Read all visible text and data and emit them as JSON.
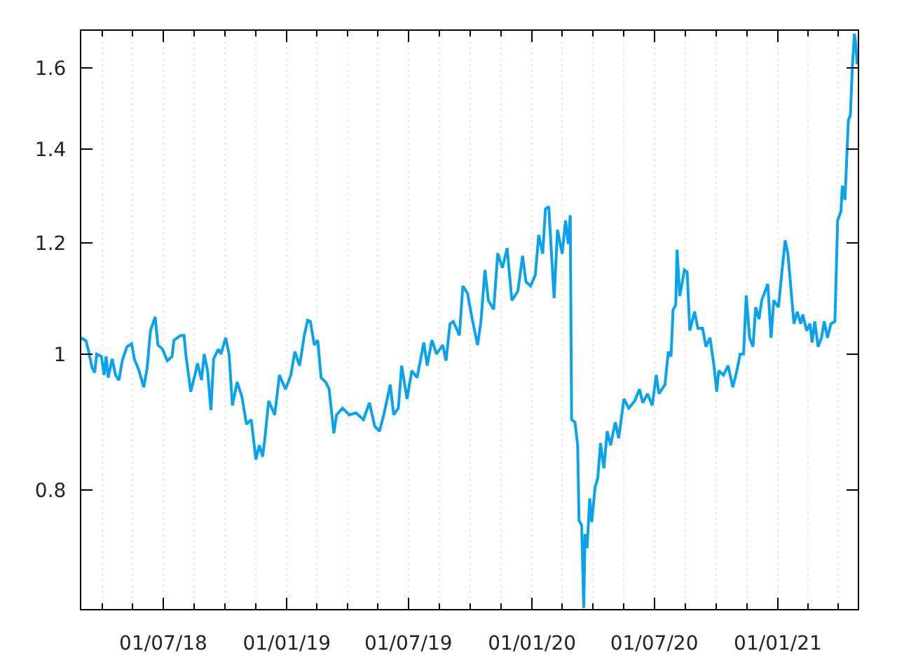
{
  "chart_data": {
    "type": "line",
    "x": [
      "2018-03-01",
      "2018-03-08",
      "2018-03-12",
      "2018-03-17",
      "2018-03-21",
      "2018-03-24",
      "2018-03-31",
      "2018-04-04",
      "2018-04-07",
      "2018-04-10",
      "2018-04-16",
      "2018-04-21",
      "2018-04-26",
      "2018-05-01",
      "2018-05-08",
      "2018-05-15",
      "2018-05-19",
      "2018-05-26",
      "2018-06-02",
      "2018-06-07",
      "2018-06-12",
      "2018-06-19",
      "2018-06-23",
      "2018-06-30",
      "2018-07-07",
      "2018-07-14",
      "2018-07-17",
      "2018-07-27",
      "2018-08-01",
      "2018-08-04",
      "2018-08-11",
      "2018-08-18",
      "2018-08-21",
      "2018-08-27",
      "2018-08-31",
      "2018-09-05",
      "2018-09-10",
      "2018-09-14",
      "2018-09-21",
      "2018-09-25",
      "2018-10-02",
      "2018-10-07",
      "2018-10-12",
      "2018-10-19",
      "2018-10-26",
      "2018-11-02",
      "2018-11-09",
      "2018-11-16",
      "2018-11-21",
      "2018-11-26",
      "2018-11-29",
      "2018-12-05",
      "2018-12-14",
      "2018-12-21",
      "2018-12-30",
      "2019-01-07",
      "2019-01-13",
      "2019-01-20",
      "2019-01-27",
      "2019-02-01",
      "2019-02-05",
      "2019-02-11",
      "2019-02-16",
      "2019-02-21",
      "2019-02-28",
      "2019-03-05",
      "2019-03-12",
      "2019-03-16",
      "2019-03-25",
      "2019-04-04",
      "2019-04-14",
      "2019-04-25",
      "2019-05-04",
      "2019-05-12",
      "2019-05-19",
      "2019-05-26",
      "2019-06-04",
      "2019-06-09",
      "2019-06-16",
      "2019-06-21",
      "2019-06-29",
      "2019-07-06",
      "2019-07-14",
      "2019-07-24",
      "2019-07-29",
      "2019-08-05",
      "2019-08-12",
      "2019-08-21",
      "2019-08-26",
      "2019-09-01",
      "2019-09-06",
      "2019-09-15",
      "2019-09-20",
      "2019-09-27",
      "2019-10-04",
      "2019-10-12",
      "2019-10-17",
      "2019-10-23",
      "2019-10-28",
      "2019-11-05",
      "2019-11-11",
      "2019-11-18",
      "2019-11-25",
      "2019-12-02",
      "2019-12-11",
      "2019-12-18",
      "2019-12-23",
      "2019-12-30",
      "2020-01-06",
      "2020-01-11",
      "2020-01-17",
      "2020-01-21",
      "2020-01-26",
      "2020-01-30",
      "2020-02-03",
      "2020-02-08",
      "2020-02-15",
      "2020-02-20",
      "2020-02-24",
      "2020-02-27",
      "2020-02-29",
      "2020-03-05",
      "2020-03-09",
      "2020-03-11",
      "2020-03-15",
      "2020-03-18",
      "2020-03-20",
      "2020-03-23",
      "2020-03-27",
      "2020-03-30",
      "2020-04-04",
      "2020-04-08",
      "2020-04-12",
      "2020-04-17",
      "2020-04-22",
      "2020-04-27",
      "2020-05-04",
      "2020-05-09",
      "2020-05-17",
      "2020-05-24",
      "2020-06-02",
      "2020-06-09",
      "2020-06-14",
      "2020-06-21",
      "2020-06-28",
      "2020-07-04",
      "2020-07-08",
      "2020-07-17",
      "2020-07-22",
      "2020-07-26",
      "2020-07-29",
      "2020-08-02",
      "2020-08-04",
      "2020-08-08",
      "2020-08-15",
      "2020-08-19",
      "2020-08-23",
      "2020-08-30",
      "2020-09-04",
      "2020-09-11",
      "2020-09-16",
      "2020-09-22",
      "2020-09-28",
      "2020-10-02",
      "2020-10-05",
      "2020-10-12",
      "2020-10-19",
      "2020-10-26",
      "2020-11-01",
      "2020-11-06",
      "2020-11-11",
      "2020-11-15",
      "2020-11-20",
      "2020-11-25",
      "2020-11-29",
      "2020-12-04",
      "2020-12-08",
      "2020-12-17",
      "2020-12-22",
      "2020-12-26",
      "2021-01-02",
      "2021-01-07",
      "2021-01-12",
      "2021-01-16",
      "2021-01-19",
      "2021-01-25",
      "2021-01-30",
      "2021-02-04",
      "2021-02-07",
      "2021-02-13",
      "2021-02-18",
      "2021-02-21",
      "2021-02-25",
      "2021-03-02",
      "2021-03-07",
      "2021-03-11",
      "2021-03-16",
      "2021-03-21",
      "2021-03-27",
      "2021-03-31",
      "2021-04-05",
      "2021-04-07",
      "2021-04-11",
      "2021-04-16",
      "2021-04-19",
      "2021-04-22",
      "2021-04-25",
      "2021-04-27",
      "2021-04-29"
    ],
    "series": [
      {
        "color": "#0aa2ec",
        "values": [
          1.027,
          1.022,
          1.004,
          0.978,
          0.97,
          1.0,
          0.996,
          0.966,
          0.996,
          0.962,
          0.992,
          0.966,
          0.958,
          0.989,
          1.012,
          1.017,
          0.992,
          0.973,
          0.947,
          0.977,
          1.039,
          1.063,
          1.015,
          1.008,
          0.989,
          0.996,
          1.023,
          1.031,
          1.031,
          0.996,
          0.94,
          0.97,
          0.985,
          0.958,
          1.0,
          0.973,
          0.912,
          0.992,
          1.008,
          1.0,
          1.027,
          1.0,
          0.919,
          0.955,
          0.933,
          0.891,
          0.898,
          0.841,
          0.861,
          0.845,
          0.868,
          0.926,
          0.905,
          0.966,
          0.944,
          0.966,
          1.004,
          0.981,
          1.031,
          1.057,
          1.055,
          1.015,
          1.023,
          0.962,
          0.955,
          0.944,
          0.878,
          0.905,
          0.915,
          0.905,
          0.908,
          0.898,
          0.923,
          0.888,
          0.881,
          0.908,
          0.951,
          0.905,
          0.915,
          0.981,
          0.929,
          0.973,
          0.962,
          1.019,
          0.981,
          1.023,
          1.0,
          1.015,
          0.989,
          1.051,
          1.055,
          1.031,
          1.118,
          1.105,
          1.059,
          1.015,
          1.055,
          1.148,
          1.092,
          1.076,
          1.18,
          1.152,
          1.19,
          1.092,
          1.109,
          1.175,
          1.126,
          1.118,
          1.139,
          1.216,
          1.179,
          1.269,
          1.274,
          1.179,
          1.096,
          1.226,
          1.179,
          1.245,
          1.198,
          1.256,
          0.898,
          0.894,
          0.861,
          0.761,
          0.755,
          0.659,
          0.744,
          0.727,
          0.789,
          0.759,
          0.804,
          0.816,
          0.864,
          0.829,
          0.881,
          0.861,
          0.894,
          0.871,
          0.929,
          0.915,
          0.926,
          0.944,
          0.923,
          0.937,
          0.919,
          0.966,
          0.937,
          0.951,
          1.004,
          0.996,
          1.075,
          1.084,
          1.187,
          1.1,
          1.148,
          1.144,
          1.039,
          1.072,
          1.043,
          1.043,
          1.012,
          1.027,
          0.981,
          0.94,
          0.973,
          0.966,
          0.981,
          0.947,
          0.973,
          1.0,
          1.0,
          1.101,
          1.027,
          1.012,
          1.08,
          1.059,
          1.092,
          1.122,
          1.027,
          1.092,
          1.08,
          1.144,
          1.205,
          1.179,
          1.135,
          1.051,
          1.072,
          1.051,
          1.067,
          1.039,
          1.051,
          1.019,
          1.055,
          1.012,
          1.027,
          1.055,
          1.027,
          1.051,
          1.055,
          1.245,
          1.264,
          1.318,
          1.288,
          1.468,
          1.48,
          1.604,
          1.692,
          1.666,
          1.609
        ]
      }
    ],
    "xlim": [
      "2018-03-01",
      "2021-04-30"
    ],
    "ylim": [
      0.658,
      1.7
    ],
    "xticks": [
      {
        "value": "2018-04-01",
        "label": null
      },
      {
        "value": "2018-05-16",
        "label": null
      },
      {
        "value": "2018-07-01",
        "label": "01/07/18"
      },
      {
        "value": "2018-08-16",
        "label": null
      },
      {
        "value": "2018-10-01",
        "label": null
      },
      {
        "value": "2018-11-16",
        "label": null
      },
      {
        "value": "2019-01-01",
        "label": "01/01/19"
      },
      {
        "value": "2019-02-15",
        "label": null
      },
      {
        "value": "2019-04-01",
        "label": null
      },
      {
        "value": "2019-05-16",
        "label": null
      },
      {
        "value": "2019-07-01",
        "label": "01/07/19"
      },
      {
        "value": "2019-08-16",
        "label": null
      },
      {
        "value": "2019-10-01",
        "label": null
      },
      {
        "value": "2019-11-16",
        "label": null
      },
      {
        "value": "2020-01-01",
        "label": "01/01/20"
      },
      {
        "value": "2020-02-15",
        "label": null
      },
      {
        "value": "2020-04-01",
        "label": null
      },
      {
        "value": "2020-05-16",
        "label": null
      },
      {
        "value": "2020-07-01",
        "label": "01/07/20"
      },
      {
        "value": "2020-08-16",
        "label": null
      },
      {
        "value": "2020-10-01",
        "label": null
      },
      {
        "value": "2020-11-16",
        "label": null
      },
      {
        "value": "2021-01-01",
        "label": "01/01/21"
      },
      {
        "value": "2021-02-15",
        "label": null
      },
      {
        "value": "2021-04-01",
        "label": null
      }
    ],
    "yticks": [
      0.8,
      1,
      1.2,
      1.4,
      1.6
    ],
    "log": true,
    "grid": "x"
  }
}
